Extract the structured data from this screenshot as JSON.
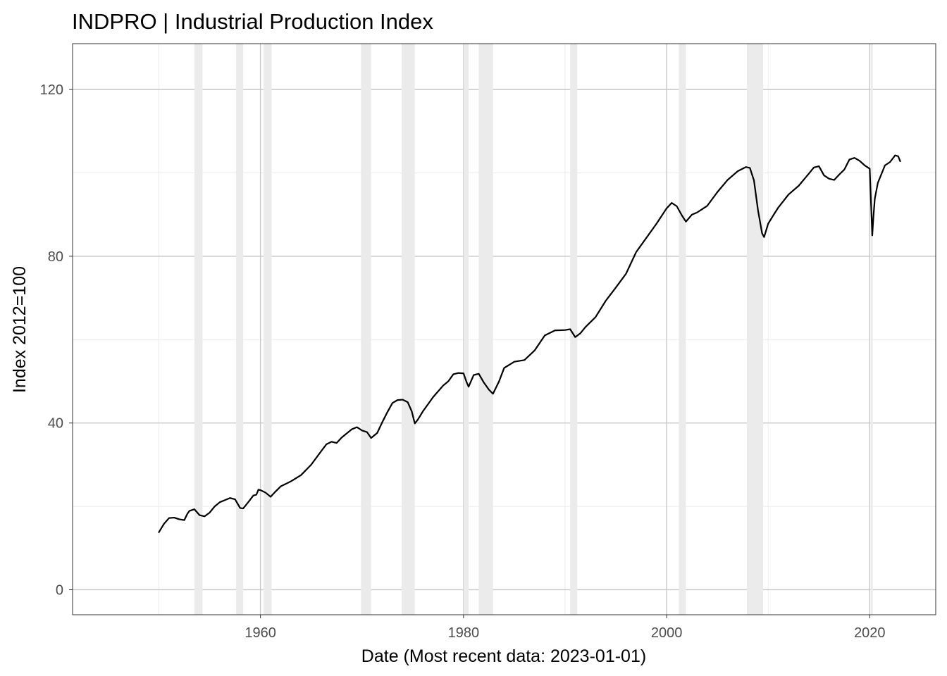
{
  "chart_data": {
    "type": "line",
    "title": "INDPRO | Industrial Production Index",
    "xlabel": "Date (Most recent data: 2023-01-01)",
    "ylabel": "Index 2012=100",
    "xlim": [
      1941.5,
      2026.5
    ],
    "ylim": [
      -6,
      131
    ],
    "x_ticks": [
      1960,
      1980,
      2000,
      2020
    ],
    "x_tick_labels": [
      "1960",
      "1980",
      "2000",
      "2020"
    ],
    "y_ticks": [
      0,
      40,
      80,
      120
    ],
    "y_tick_labels": [
      "0",
      "40",
      "80",
      "120"
    ],
    "grid": true,
    "legend": "none",
    "recession_shading": [
      {
        "start": 1953.5,
        "end": 1954.3
      },
      {
        "start": 1957.6,
        "end": 1958.3
      },
      {
        "start": 1960.3,
        "end": 1961.1
      },
      {
        "start": 1969.9,
        "end": 1970.9
      },
      {
        "start": 1973.9,
        "end": 1975.2
      },
      {
        "start": 1980.0,
        "end": 1980.5
      },
      {
        "start": 1981.5,
        "end": 1982.9
      },
      {
        "start": 1990.5,
        "end": 1991.2
      },
      {
        "start": 2001.2,
        "end": 2001.9
      },
      {
        "start": 2007.9,
        "end": 2009.5
      },
      {
        "start": 2020.1,
        "end": 2020.3
      }
    ],
    "series": [
      {
        "x": [
          1950.0,
          1950.5,
          1951.0,
          1951.5,
          1952.0,
          1952.5,
          1952.8,
          1953.0,
          1953.5,
          1954.0,
          1954.5,
          1955.0,
          1955.5,
          1956.0,
          1956.5,
          1957.0,
          1957.5,
          1958.0,
          1958.3,
          1958.8,
          1959.3,
          1959.6,
          1959.8,
          1960.0,
          1960.5,
          1961.0,
          1961.5,
          1962.0,
          1962.5,
          1963.0,
          1964.0,
          1965.0,
          1966.0,
          1966.5,
          1967.0,
          1967.5,
          1968.0,
          1969.0,
          1969.5,
          1970.0,
          1970.5,
          1970.9,
          1971.5,
          1972.0,
          1972.5,
          1973.0,
          1973.5,
          1974.0,
          1974.5,
          1974.9,
          1975.2,
          1975.5,
          1976.0,
          1977.0,
          1978.0,
          1978.5,
          1979.0,
          1979.5,
          1980.0,
          1980.3,
          1980.5,
          1981.0,
          1981.5,
          1982.0,
          1982.5,
          1982.9,
          1983.5,
          1984.0,
          1985.0,
          1986.0,
          1987.0,
          1988.0,
          1989.0,
          1990.0,
          1990.5,
          1991.0,
          1991.5,
          1992.0,
          1993.0,
          1994.0,
          1995.0,
          1996.0,
          1997.0,
          1998.0,
          1999.0,
          2000.0,
          2000.5,
          2001.0,
          2001.5,
          2001.9,
          2002.5,
          2003.0,
          2004.0,
          2005.0,
          2006.0,
          2007.0,
          2007.8,
          2008.2,
          2008.6,
          2009.0,
          2009.4,
          2009.6,
          2010.0,
          2010.5,
          2011.0,
          2012.0,
          2013.0,
          2014.0,
          2014.5,
          2015.0,
          2015.5,
          2016.0,
          2016.5,
          2017.0,
          2017.5,
          2018.0,
          2018.5,
          2019.0,
          2019.5,
          2020.0,
          2020.25,
          2020.35,
          2020.5,
          2020.8,
          2021.0,
          2021.5,
          2022.0,
          2022.5,
          2022.8,
          2023.0
        ],
        "values": [
          13.8,
          15.8,
          17.2,
          17.3,
          16.9,
          16.7,
          18.2,
          18.9,
          19.3,
          17.9,
          17.6,
          18.5,
          20.0,
          21.0,
          21.5,
          22.0,
          21.7,
          19.6,
          19.5,
          21.0,
          22.6,
          22.8,
          24.0,
          23.9,
          23.3,
          22.3,
          23.6,
          24.8,
          25.4,
          26.0,
          27.5,
          30.0,
          33.3,
          34.9,
          35.5,
          35.2,
          36.5,
          38.5,
          39.0,
          38.2,
          37.8,
          36.4,
          37.6,
          40.2,
          42.6,
          44.8,
          45.5,
          45.6,
          45.0,
          42.8,
          39.9,
          40.8,
          42.8,
          46.2,
          49.0,
          50.0,
          51.7,
          52.0,
          51.9,
          49.8,
          48.7,
          51.5,
          51.8,
          49.7,
          48.0,
          47.0,
          50.0,
          53.2,
          54.7,
          55.1,
          57.4,
          61.0,
          62.2,
          62.3,
          62.5,
          60.6,
          61.5,
          63.0,
          65.4,
          69.3,
          72.5,
          75.8,
          81.0,
          84.4,
          87.8,
          91.5,
          92.8,
          92.0,
          89.8,
          88.3,
          90.0,
          90.5,
          92.1,
          95.4,
          98.3,
          100.4,
          101.4,
          101.2,
          98.2,
          91.0,
          85.5,
          84.6,
          87.8,
          89.8,
          91.7,
          94.8,
          96.9,
          99.8,
          101.3,
          101.6,
          99.4,
          98.6,
          98.3,
          99.6,
          100.8,
          103.2,
          103.6,
          102.9,
          101.8,
          101.0,
          85.0,
          89.0,
          93.8,
          97.6,
          98.8,
          101.8,
          102.6,
          104.2,
          104.0,
          102.8
        ]
      }
    ]
  }
}
